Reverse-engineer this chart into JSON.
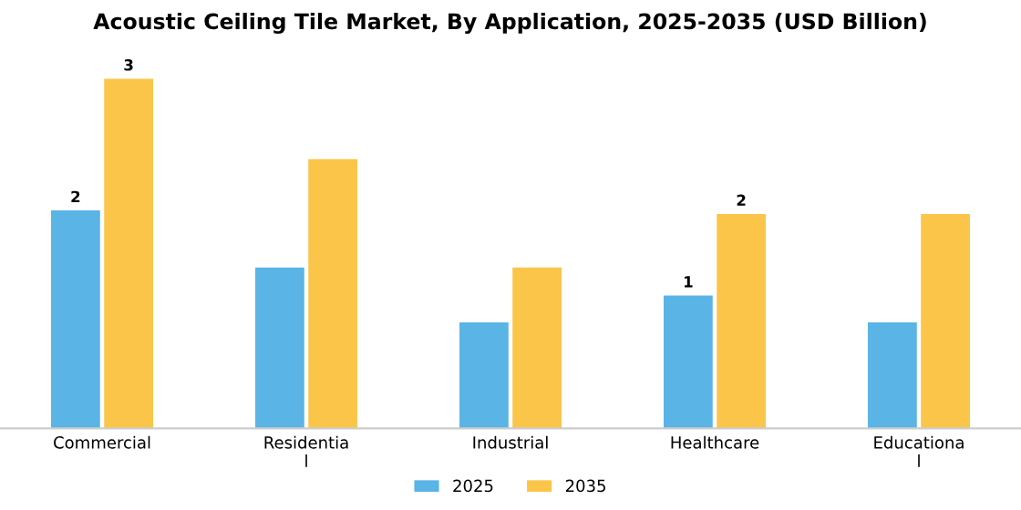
{
  "chart_data": {
    "type": "bar",
    "title": "Acoustic Ceiling Tile Market, By Application, 2025-2035 (USD Billion)",
    "categories": [
      "Commercial",
      "Residentia\nl",
      "Industrial",
      "Healthcare",
      "Educationa\nl"
    ],
    "series": [
      {
        "name": "2025",
        "color": "#5ab4e5",
        "values": [
          1.87,
          1.38,
          0.91,
          1.14,
          0.91
        ],
        "value_labels": [
          "2",
          null,
          null,
          "1",
          null
        ]
      },
      {
        "name": "2035",
        "color": "#fbc54a",
        "values": [
          3.0,
          2.31,
          1.38,
          1.84,
          1.84
        ],
        "value_labels": [
          "3",
          null,
          null,
          "2",
          null
        ]
      }
    ],
    "grid": false,
    "legend": "bottom"
  }
}
